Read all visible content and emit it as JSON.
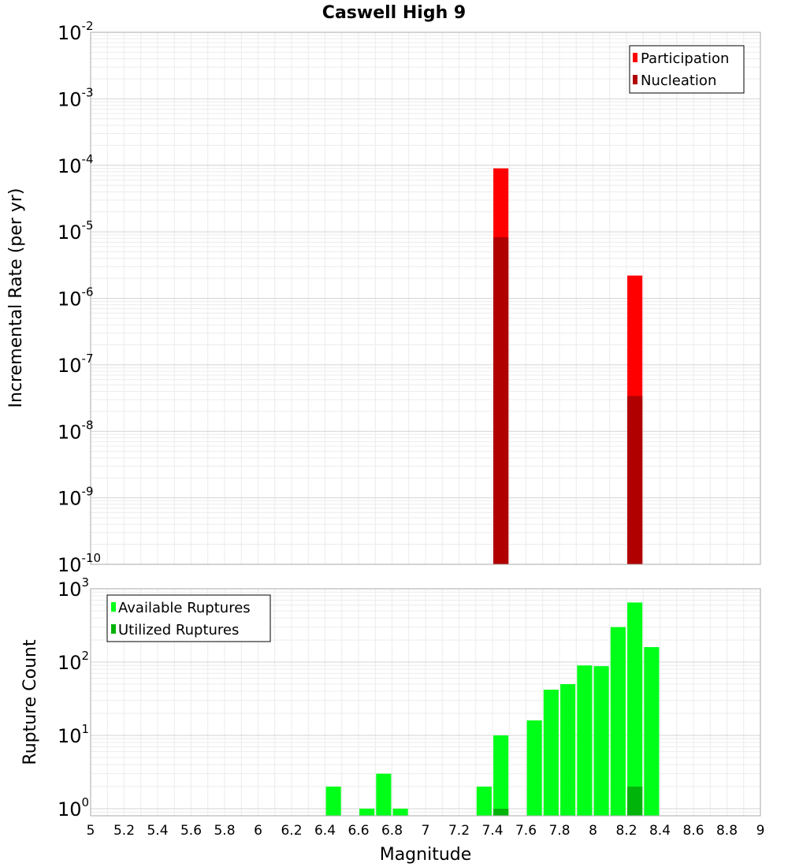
{
  "title": "Caswell High 9",
  "chart_data": [
    {
      "type": "bar",
      "panel": "top",
      "title": "Caswell High 9",
      "xlabel": "Magnitude",
      "ylabel": "Incremental Rate (per yr)",
      "xlim": [
        5,
        9
      ],
      "ylim": [
        1e-10,
        0.01
      ],
      "yscale": "log",
      "bar_width": 0.09,
      "grid": true,
      "legend_position": "top-right",
      "yticks": [
        {
          "base": "10",
          "exp": "-2"
        },
        {
          "base": "10",
          "exp": "-3"
        },
        {
          "base": "10",
          "exp": "-4"
        },
        {
          "base": "10",
          "exp": "-5"
        },
        {
          "base": "10",
          "exp": "-6"
        },
        {
          "base": "10",
          "exp": "-7"
        },
        {
          "base": "10",
          "exp": "-8"
        },
        {
          "base": "10",
          "exp": "-9"
        },
        {
          "base": "10",
          "exp": "-10"
        }
      ],
      "series": [
        {
          "name": "Participation",
          "color": "#ff0000",
          "x": [
            7.45,
            8.25
          ],
          "values": [
            9e-05,
            2.2e-06
          ]
        },
        {
          "name": "Nucleation",
          "color": "#b00000",
          "x": [
            7.45,
            8.25
          ],
          "values": [
            8.3e-06,
            3.4e-08
          ]
        }
      ]
    },
    {
      "type": "bar",
      "panel": "bottom",
      "xlabel": "Magnitude",
      "ylabel": "Rupture Count",
      "xlim": [
        5,
        9
      ],
      "ylim": [
        0.8,
        1000
      ],
      "yscale": "log",
      "bar_width": 0.09,
      "grid": true,
      "legend_position": "top-left",
      "yticks": [
        {
          "base": "10",
          "exp": "3"
        },
        {
          "base": "10",
          "exp": "2"
        },
        {
          "base": "10",
          "exp": "1"
        },
        {
          "base": "10",
          "exp": "0"
        }
      ],
      "xticks": [
        "5",
        "5.2",
        "5.4",
        "5.6",
        "5.8",
        "6",
        "6.2",
        "6.4",
        "6.6",
        "6.8",
        "7",
        "7.2",
        "7.4",
        "7.6",
        "7.8",
        "8",
        "8.2",
        "8.4",
        "8.6",
        "8.8",
        "9"
      ],
      "series": [
        {
          "name": "Available Ruptures",
          "color": "#00ff18",
          "x": [
            6.45,
            6.65,
            6.75,
            6.85,
            7.35,
            7.45,
            7.65,
            7.75,
            7.85,
            7.95,
            8.05,
            8.15,
            8.25,
            8.35
          ],
          "values": [
            2,
            1,
            3,
            1,
            2,
            10,
            16,
            42,
            50,
            90,
            88,
            300,
            650,
            160
          ]
        },
        {
          "name": "Utilized Ruptures",
          "color": "#00b40a",
          "x": [
            7.45,
            8.25
          ],
          "values": [
            1,
            2
          ]
        }
      ]
    }
  ]
}
